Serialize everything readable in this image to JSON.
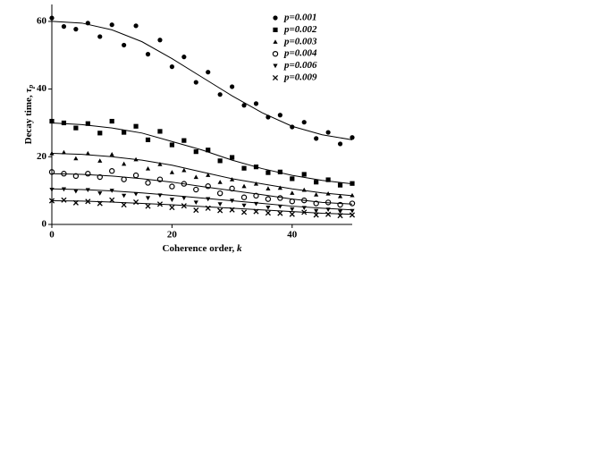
{
  "chart_data": {
    "type": "scatter",
    "xlabel": {
      "text": "Coherence order, ",
      "symbol": "k"
    },
    "ylabel": {
      "text": "Decay time, ",
      "symbol": "τ",
      "subscript": "p"
    },
    "xlim": [
      0,
      50
    ],
    "ylim": [
      0,
      65
    ],
    "xticks": [
      0,
      20,
      40
    ],
    "yticks": [
      0,
      20,
      40,
      60
    ],
    "x": [
      0,
      2,
      4,
      6,
      8,
      10,
      12,
      14,
      16,
      18,
      20,
      22,
      24,
      26,
      28,
      30,
      32,
      34,
      36,
      38,
      40,
      42,
      44,
      46,
      48,
      50
    ],
    "fit_x": [
      0,
      5,
      10,
      15,
      20,
      25,
      30,
      35,
      40,
      45,
      50
    ],
    "series": [
      {
        "name": "p=0.001",
        "color": "#000000",
        "marker": "circle",
        "values": [
          61,
          58.5,
          57.7,
          59.5,
          55.5,
          59,
          53,
          58.7,
          50.3,
          54.5,
          46.6,
          49.5,
          42,
          45,
          38.4,
          40.7,
          35.2,
          35.7,
          31.7,
          32.3,
          28.8,
          30.2,
          25.4,
          27.2,
          23.8,
          25.7
        ],
        "fit": [
          60,
          59.5,
          57.5,
          54,
          49,
          43.5,
          38,
          33,
          29,
          26.5,
          25
        ]
      },
      {
        "name": "p=0.002",
        "color": "#000000",
        "marker": "square",
        "values": [
          30.5,
          30,
          28.5,
          29.8,
          27,
          30.5,
          27.2,
          29,
          25,
          27.5,
          23.5,
          24.8,
          21.5,
          22,
          18.8,
          19.8,
          16.6,
          17,
          15.3,
          15.5,
          13.5,
          14.8,
          12.5,
          13.2,
          11.6,
          12.1
        ],
        "fit": [
          30,
          29.5,
          28.5,
          27,
          24.5,
          22,
          19,
          16.5,
          14.5,
          13,
          12
        ]
      },
      {
        "name": "p=0.003",
        "color": "#000000",
        "marker": "triangle",
        "values": [
          21,
          21.3,
          19.5,
          21,
          18.8,
          20.7,
          17.9,
          19.2,
          16.5,
          17.8,
          15.4,
          16,
          14,
          14.6,
          12.5,
          13.3,
          11.3,
          12,
          10.6,
          10.8,
          9.3,
          10.2,
          8.8,
          9.1,
          8.3,
          8.6
        ],
        "fit": [
          21,
          20.7,
          20,
          19,
          17.5,
          15.5,
          13.5,
          12,
          10.5,
          9.3,
          8.5
        ]
      },
      {
        "name": "p=0.004",
        "color": "#000000",
        "marker": "open-circle",
        "values": [
          15.5,
          15,
          14.3,
          15,
          14,
          15.8,
          13.3,
          14.5,
          12.3,
          13.3,
          11.2,
          12,
          10.3,
          11.3,
          9.2,
          10.6,
          8,
          8.5,
          7.5,
          7.8,
          6.8,
          7.1,
          6.2,
          6.5,
          5.8,
          6.2
        ],
        "fit": [
          15,
          14.8,
          14.3,
          13.5,
          12.5,
          11.2,
          10,
          8.8,
          7.5,
          6.5,
          6
        ]
      },
      {
        "name": "p=0.006",
        "color": "#000000",
        "marker": "down-triangle",
        "values": [
          10.3,
          10.4,
          9.8,
          10.2,
          9.2,
          10,
          8.5,
          9,
          7.8,
          8.6,
          7.3,
          7.8,
          6.5,
          7.5,
          6,
          7,
          5.6,
          6.1,
          5,
          5.3,
          4.5,
          4.9,
          4,
          4.4,
          3.8,
          4
        ],
        "fit": [
          10.5,
          10.3,
          9.9,
          9.3,
          8.6,
          7.8,
          7,
          6.2,
          5.4,
          4.8,
          4.3
        ]
      },
      {
        "name": "p=0.009",
        "color": "#000000",
        "marker": "cross",
        "values": [
          7,
          7.2,
          6.4,
          6.8,
          6.2,
          7.2,
          5.8,
          6.6,
          5.4,
          6,
          5,
          5.5,
          4.2,
          4.8,
          4.1,
          4.3,
          3.6,
          3.8,
          3.4,
          3.3,
          3,
          3.6,
          2.8,
          3,
          2.6,
          2.8
        ],
        "fit": [
          7,
          6.9,
          6.6,
          6.2,
          5.8,
          5.3,
          4.8,
          4.3,
          3.8,
          3.3,
          3
        ]
      }
    ]
  }
}
